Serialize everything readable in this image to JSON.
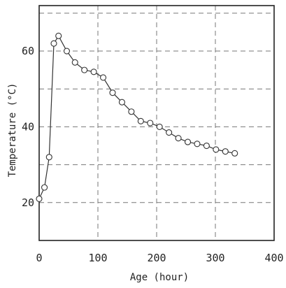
{
  "chart_data": {
    "type": "line",
    "title": "",
    "xlabel": "Age (hour)",
    "ylabel": "Temperature (°C)",
    "xlim": [
      0,
      400
    ],
    "ylim": [
      10,
      72
    ],
    "xticks": [
      0,
      100,
      200,
      300,
      400
    ],
    "yticks": [
      20,
      40,
      60
    ],
    "grid": true,
    "legend": "none",
    "colors": {
      "line": "#333333",
      "marker_fill": "#ffffff",
      "grid": "#777777",
      "frame": "#222222"
    },
    "series": [
      {
        "marker": "circle",
        "x": [
          0,
          9,
          17,
          25,
          33,
          47,
          61,
          77,
          93,
          109,
          125,
          141,
          157,
          173,
          189,
          205,
          221,
          237,
          253,
          269,
          285,
          301,
          317,
          333
        ],
        "y": [
          21,
          24,
          32,
          62,
          64,
          60,
          57,
          55,
          54.5,
          53,
          49,
          46.5,
          44,
          41.5,
          41,
          40,
          38.5,
          37,
          36,
          35.5,
          35,
          34,
          33.5,
          33
        ]
      }
    ]
  }
}
